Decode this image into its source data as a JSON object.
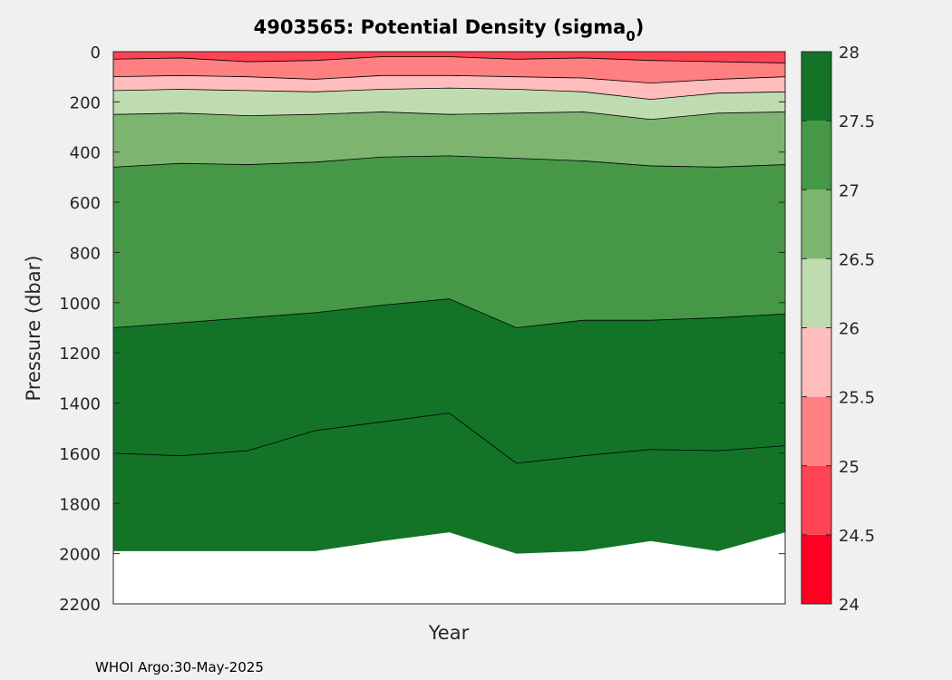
{
  "chart_data": {
    "type": "contour",
    "title": "4903565: Potential Density (sigma",
    "title_subscript": "0",
    "title_suffix": ")",
    "xlabel": "Year",
    "ylabel": "Pressure (dbar)",
    "ylim": [
      0,
      2200
    ],
    "y_reversed": true,
    "yticks": [
      0,
      200,
      400,
      600,
      800,
      1000,
      1200,
      1400,
      1600,
      1800,
      2000,
      2200
    ],
    "grid": false,
    "colorbar": {
      "ticks": [
        "28",
        "27.5",
        "27",
        "26.5",
        "26",
        "25.5",
        "25",
        "24.5",
        "24"
      ],
      "levels": [
        {
          "range": [
            24.0,
            24.5
          ],
          "color": "#ff0022"
        },
        {
          "range": [
            24.5,
            25.0
          ],
          "color": "#ff4352"
        },
        {
          "range": [
            25.0,
            25.5
          ],
          "color": "#ff8080"
        },
        {
          "range": [
            25.5,
            26.0
          ],
          "color": "#ffbdbd"
        },
        {
          "range": [
            26.0,
            26.5
          ],
          "color": "#bfdcb1"
        },
        {
          "range": [
            26.5,
            27.0
          ],
          "color": "#7db570"
        },
        {
          "range": [
            27.0,
            27.5
          ],
          "color": "#469846"
        },
        {
          "range": [
            27.5,
            28.0
          ],
          "color": "#137427"
        }
      ]
    },
    "profiles_x": [
      0,
      0.1,
      0.2,
      0.3,
      0.4,
      0.5,
      0.6,
      0.7,
      0.8,
      0.9,
      1.0
    ],
    "isopycnals": [
      {
        "level": 25.0,
        "pressure": [
          30,
          25,
          40,
          35,
          20,
          20,
          30,
          25,
          35,
          40,
          45
        ]
      },
      {
        "level": 25.5,
        "pressure": [
          100,
          95,
          100,
          110,
          95,
          95,
          100,
          105,
          125,
          110,
          100
        ]
      },
      {
        "level": 26.0,
        "pressure": [
          155,
          150,
          155,
          160,
          150,
          145,
          150,
          160,
          190,
          165,
          160
        ]
      },
      {
        "level": 26.5,
        "pressure": [
          250,
          245,
          255,
          250,
          240,
          250,
          245,
          240,
          270,
          245,
          240
        ]
      },
      {
        "level": 27.0,
        "pressure": [
          460,
          445,
          450,
          440,
          420,
          415,
          425,
          435,
          455,
          460,
          450
        ]
      },
      {
        "level": 27.5,
        "pressure": [
          1100,
          1080,
          1060,
          1040,
          1010,
          985,
          1100,
          1070,
          1070,
          1060,
          1045
        ]
      },
      {
        "level": 27.75,
        "pressure": [
          1600,
          1610,
          1590,
          1510,
          1475,
          1440,
          1640,
          1610,
          1585,
          1590,
          1570
        ]
      }
    ],
    "max_pressure": [
      1990,
      1990,
      1990,
      1990,
      1950,
      1915,
      2000,
      1990,
      1950,
      1990,
      1915
    ]
  },
  "footer": "WHOI Argo:30-May-2025"
}
